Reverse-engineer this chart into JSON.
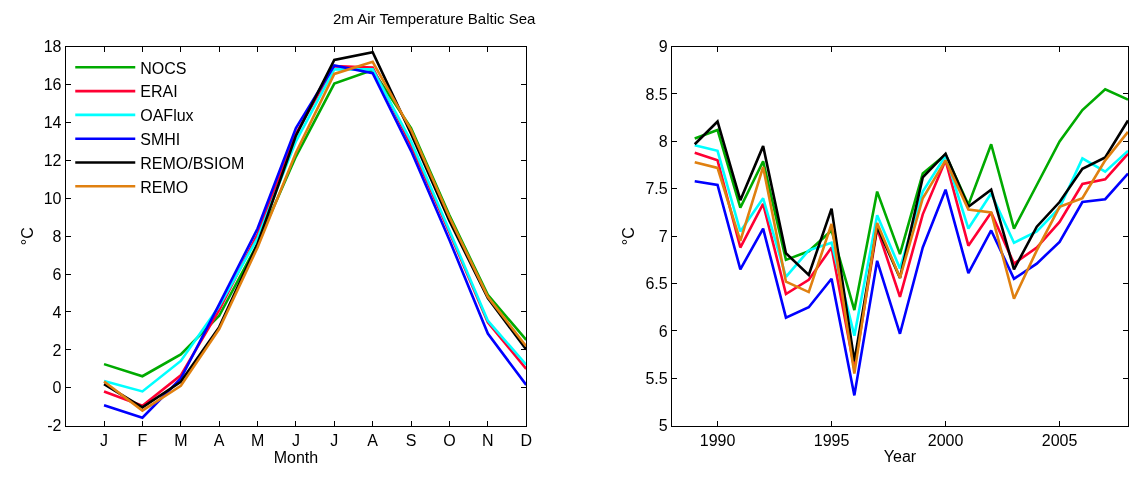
{
  "chart_data": [
    {
      "type": "line",
      "title": "2m Air Temperature Baltic Sea",
      "xlabel": "Month",
      "ylabel": "°C",
      "legend": "top left",
      "marker": "none",
      "line_style": "solid",
      "categories": [
        "J",
        "F",
        "M",
        "A",
        "M",
        "J",
        "J",
        "A",
        "S",
        "O",
        "N",
        "D"
      ],
      "ylim": [
        -2,
        18
      ],
      "yticks": [
        -2,
        0,
        2,
        4,
        6,
        8,
        10,
        12,
        14,
        16,
        18
      ],
      "series": [
        {
          "name": "NOCS",
          "color": "#00aa00",
          "values": [
            1.25,
            0.61,
            1.76,
            3.8,
            7.6,
            12.2,
            16.05,
            16.76,
            13.7,
            9.1,
            4.9,
            2.53
          ]
        },
        {
          "name": "ERAI",
          "color": "#ff0033",
          "values": [
            -0.19,
            -0.95,
            0.66,
            4.1,
            8.1,
            13.4,
            16.97,
            16.9,
            12.8,
            8.2,
            3.46,
            1.0
          ]
        },
        {
          "name": "OAFlux",
          "color": "#00ffff",
          "values": [
            0.36,
            -0.19,
            1.42,
            4.3,
            7.9,
            13.0,
            16.8,
            16.8,
            13.0,
            8.3,
            3.54,
            1.22
          ]
        },
        {
          "name": "SMHI",
          "color": "#0000ff",
          "values": [
            -0.92,
            -1.58,
            0.49,
            4.4,
            8.4,
            13.7,
            17.0,
            16.6,
            12.5,
            7.8,
            2.86,
            0.15
          ]
        },
        {
          "name": "REMO/BSIOM",
          "color": "#000000",
          "values": [
            0.2,
            -1.03,
            0.32,
            3.2,
            7.6,
            13.3,
            17.3,
            17.7,
            13.4,
            8.8,
            4.73,
            2.02
          ]
        },
        {
          "name": "REMO",
          "color": "#e08010",
          "values": [
            0.33,
            -1.2,
            0.1,
            3.1,
            7.4,
            12.4,
            16.56,
            17.2,
            13.6,
            9.0,
            4.8,
            2.19
          ]
        }
      ]
    },
    {
      "type": "line",
      "xlabel": "Year",
      "ylabel": "°C",
      "legend": false,
      "marker": "none",
      "line_style": "solid",
      "x": [
        1989,
        1990,
        1991,
        1992,
        1993,
        1994,
        1995,
        1996,
        1997,
        1998,
        1999,
        2000,
        2001,
        2002,
        2003,
        2004,
        2005,
        2006,
        2007,
        2008
      ],
      "xlim": [
        1988,
        2008
      ],
      "xticks": [
        1990,
        1995,
        2000,
        2005
      ],
      "ylim": [
        5,
        9
      ],
      "yticks": [
        5,
        5.5,
        6,
        6.5,
        7,
        7.5,
        8,
        8.5,
        9
      ],
      "series": [
        {
          "color": "#00aa00",
          "values": [
            8.03,
            8.12,
            7.3,
            7.79,
            6.75,
            6.84,
            7.06,
            6.22,
            7.47,
            6.81,
            7.66,
            7.86,
            7.33,
            7.97,
            7.08,
            7.54,
            8.0,
            8.33,
            8.55,
            8.44
          ]
        },
        {
          "color": "#ff0033",
          "values": [
            7.88,
            7.8,
            6.88,
            7.34,
            6.39,
            6.54,
            6.88,
            5.6,
            7.08,
            6.36,
            7.23,
            7.8,
            6.9,
            7.25,
            6.71,
            6.88,
            7.15,
            7.55,
            7.6,
            7.87
          ]
        },
        {
          "color": "#00ffff",
          "values": [
            7.96,
            7.9,
            7.05,
            7.4,
            6.57,
            6.85,
            6.93,
            5.95,
            7.22,
            6.66,
            7.47,
            7.85,
            7.08,
            7.45,
            6.93,
            7.05,
            7.3,
            7.82,
            7.68,
            7.9
          ]
        },
        {
          "color": "#0000ff",
          "values": [
            7.58,
            7.54,
            6.65,
            7.08,
            6.14,
            6.25,
            6.55,
            5.32,
            6.74,
            5.97,
            6.88,
            7.49,
            6.61,
            7.06,
            6.55,
            6.71,
            6.94,
            7.36,
            7.39,
            7.66
          ]
        },
        {
          "color": "#000000",
          "values": [
            7.97,
            8.21,
            7.38,
            7.95,
            6.82,
            6.59,
            7.29,
            5.68,
            7.1,
            6.56,
            7.62,
            7.87,
            7.31,
            7.49,
            6.65,
            7.1,
            7.36,
            7.71,
            7.83,
            8.22
          ]
        },
        {
          "color": "#e08010",
          "values": [
            7.78,
            7.72,
            6.95,
            7.73,
            6.52,
            6.41,
            7.13,
            5.55,
            7.14,
            6.56,
            7.4,
            7.8,
            7.28,
            7.25,
            6.34,
            6.85,
            7.31,
            7.4,
            7.8,
            8.1
          ]
        }
      ]
    }
  ]
}
